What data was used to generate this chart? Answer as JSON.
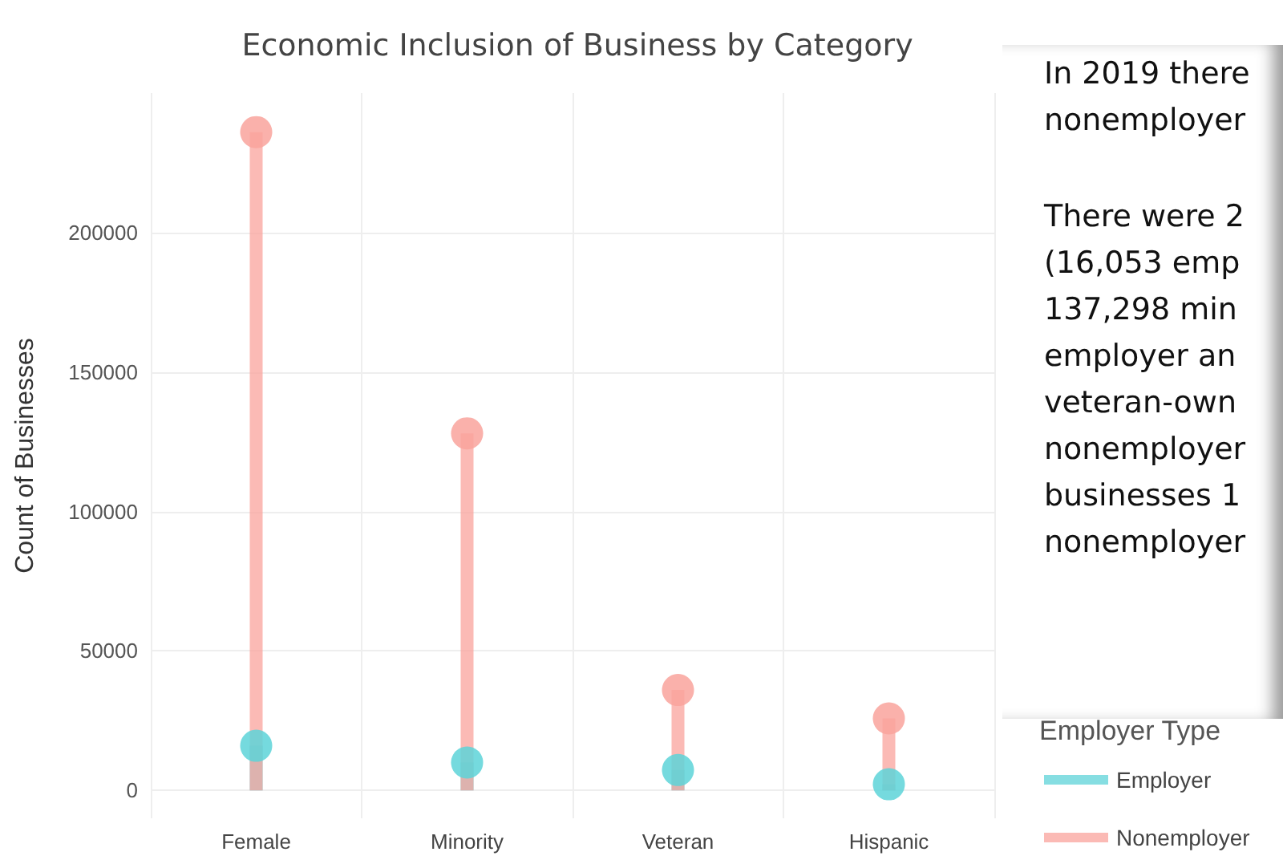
{
  "chart_data": {
    "type": "lollipop",
    "title": "Economic Inclusion of Business by Category",
    "ylabel": "Count of Businesses",
    "legend_title": "Employer Type",
    "categories": [
      "Female",
      "Minority",
      "Veteran",
      "Hispanic"
    ],
    "series": [
      {
        "name": "Employer",
        "color": "#5dd3d8",
        "values": [
          16000,
          10000,
          7300,
          2200
        ]
      },
      {
        "name": "Nonemployer",
        "color": "#f9a39c",
        "values": [
          236000,
          128000,
          36000,
          25800
        ]
      }
    ],
    "ylim": [
      -10000,
      250000
    ],
    "yticks": [
      0,
      50000,
      100000,
      150000,
      200000
    ],
    "grid": true,
    "legend": "bottom right",
    "marker": "circle",
    "annotations": [
      "In 2019 there\nnonemployer",
      "There were 2\n(16,053 emp\n137,298 min\nemployer an\nveteran-own\nnonemployer\nbusinesses 1\nnonemployer"
    ]
  }
}
